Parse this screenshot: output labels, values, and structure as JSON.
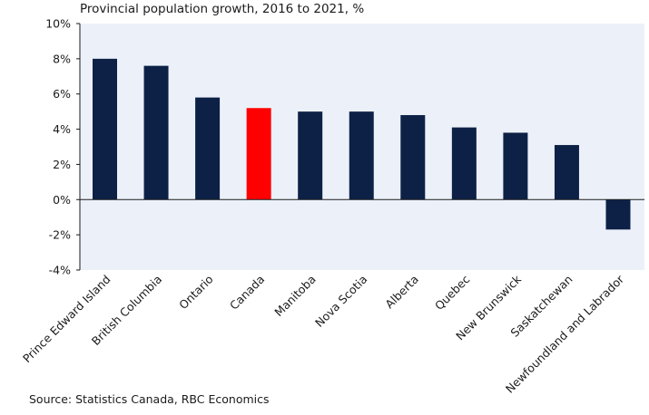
{
  "chart_data": {
    "type": "bar",
    "title": "Provincial population growth, 2016 to 2021, %",
    "source": "Source: Statistics Canada, RBC Economics",
    "categories": [
      "Prince Edward Island",
      "British Columbia",
      "Ontario",
      "Canada",
      "Manitoba",
      "Nova Scotia",
      "Alberta",
      "Quebec",
      "New Brunswick",
      "Saskatchewan",
      "Newfoundland and Labrador"
    ],
    "values": [
      8.0,
      7.6,
      5.8,
      5.2,
      5.0,
      5.0,
      4.8,
      4.1,
      3.8,
      3.1,
      -1.7
    ],
    "ylim": [
      -4,
      10
    ],
    "yticks": [
      10,
      8,
      6,
      4,
      2,
      0,
      -2,
      -4
    ],
    "ytick_labels": [
      "10%",
      "8%",
      "6%",
      "4%",
      "2%",
      "0%",
      "-2%",
      "-4%"
    ],
    "grid": false,
    "colors": {
      "bar": "#0d2147",
      "highlight": "#ff0000",
      "plot_background": "#ecf1f9"
    },
    "highlight_category": "Canada"
  }
}
